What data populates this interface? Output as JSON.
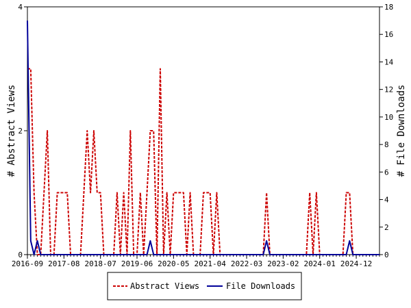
{
  "chart_data": {
    "type": "line",
    "ylabel_left": "# Abstract Views",
    "ylabel_right": "# File Downloads",
    "ylim_left": [
      0,
      4
    ],
    "ylim_right": [
      0,
      18
    ],
    "yticks_left": [
      "0",
      "2",
      "4"
    ],
    "yticks_right": [
      "0",
      "2",
      "4",
      "6",
      "8",
      "10",
      "12",
      "14",
      "16",
      "18"
    ],
    "x_range": [
      "2016-09",
      "2025-07"
    ],
    "xticks": [
      "2016-09",
      "2017-08",
      "2018-07",
      "2019-06",
      "2020-05",
      "2021-04",
      "2022-03",
      "2023-02",
      "2024-01",
      "2024-12"
    ],
    "grid": false,
    "legend_position": "bottom",
    "series": [
      {
        "name": "Abstract Views",
        "axis": "left",
        "color": "#cc0000",
        "dash": "dashed",
        "points": [
          [
            "2016-09",
            3
          ],
          [
            "2016-10",
            3
          ],
          [
            "2016-11",
            1
          ],
          [
            "2016-12",
            0
          ],
          [
            "2017-01",
            0
          ],
          [
            "2017-02",
            1
          ],
          [
            "2017-03",
            2
          ],
          [
            "2017-04",
            0
          ],
          [
            "2017-05",
            0
          ],
          [
            "2017-06",
            1
          ],
          [
            "2017-07",
            1
          ],
          [
            "2017-08",
            1
          ],
          [
            "2017-09",
            1
          ],
          [
            "2017-10",
            0
          ],
          [
            "2017-11",
            0
          ],
          [
            "2017-12",
            0
          ],
          [
            "2018-01",
            0
          ],
          [
            "2018-02",
            1
          ],
          [
            "2018-03",
            2
          ],
          [
            "2018-04",
            1
          ],
          [
            "2018-05",
            2
          ],
          [
            "2018-06",
            1
          ],
          [
            "2018-07",
            1
          ],
          [
            "2018-08",
            0
          ],
          [
            "2018-09",
            0
          ],
          [
            "2018-10",
            0
          ],
          [
            "2018-11",
            0
          ],
          [
            "2018-12",
            1
          ],
          [
            "2019-01",
            0
          ],
          [
            "2019-02",
            1
          ],
          [
            "2019-03",
            0
          ],
          [
            "2019-04",
            2
          ],
          [
            "2019-05",
            0
          ],
          [
            "2019-06",
            0
          ],
          [
            "2019-07",
            1
          ],
          [
            "2019-08",
            0
          ],
          [
            "2019-09",
            1
          ],
          [
            "2019-10",
            2
          ],
          [
            "2019-11",
            2
          ],
          [
            "2019-12",
            0
          ],
          [
            "2020-01",
            3
          ],
          [
            "2020-02",
            0
          ],
          [
            "2020-03",
            1
          ],
          [
            "2020-04",
            0
          ],
          [
            "2020-05",
            1
          ],
          [
            "2020-06",
            1
          ],
          [
            "2020-07",
            1
          ],
          [
            "2020-08",
            1
          ],
          [
            "2020-09",
            0
          ],
          [
            "2020-10",
            1
          ],
          [
            "2020-11",
            0
          ],
          [
            "2020-12",
            0
          ],
          [
            "2021-01",
            0
          ],
          [
            "2021-02",
            1
          ],
          [
            "2021-03",
            1
          ],
          [
            "2021-04",
            1
          ],
          [
            "2021-05",
            0
          ],
          [
            "2021-06",
            1
          ],
          [
            "2021-07",
            0
          ],
          [
            "2021-08",
            0
          ],
          [
            "2021-09",
            0
          ],
          [
            "2021-10",
            0
          ],
          [
            "2021-11",
            0
          ],
          [
            "2021-12",
            0
          ],
          [
            "2022-01",
            0
          ],
          [
            "2022-02",
            0
          ],
          [
            "2022-03",
            0
          ],
          [
            "2022-04",
            0
          ],
          [
            "2022-05",
            0
          ],
          [
            "2022-06",
            0
          ],
          [
            "2022-07",
            0
          ],
          [
            "2022-08",
            0
          ],
          [
            "2022-09",
            1
          ],
          [
            "2022-10",
            0
          ],
          [
            "2022-11",
            0
          ],
          [
            "2022-12",
            0
          ],
          [
            "2023-01",
            0
          ],
          [
            "2023-02",
            0
          ],
          [
            "2023-03",
            0
          ],
          [
            "2023-04",
            0
          ],
          [
            "2023-05",
            0
          ],
          [
            "2023-06",
            0
          ],
          [
            "2023-07",
            0
          ],
          [
            "2023-08",
            0
          ],
          [
            "2023-09",
            0
          ],
          [
            "2023-10",
            1
          ],
          [
            "2023-11",
            0
          ],
          [
            "2023-12",
            1
          ],
          [
            "2024-01",
            0
          ],
          [
            "2024-02",
            0
          ],
          [
            "2024-03",
            0
          ],
          [
            "2024-04",
            0
          ],
          [
            "2024-05",
            0
          ],
          [
            "2024-06",
            0
          ],
          [
            "2024-07",
            0
          ],
          [
            "2024-08",
            0
          ],
          [
            "2024-09",
            1
          ],
          [
            "2024-10",
            1
          ],
          [
            "2024-11",
            0
          ],
          [
            "2024-12",
            0
          ],
          [
            "2025-01",
            0
          ],
          [
            "2025-02",
            0
          ],
          [
            "2025-03",
            0
          ],
          [
            "2025-04",
            0
          ],
          [
            "2025-05",
            0
          ],
          [
            "2025-06",
            0
          ],
          [
            "2025-07",
            0
          ]
        ]
      },
      {
        "name": "File Downloads",
        "axis": "right",
        "color": "#000099",
        "dash": "solid",
        "points": [
          [
            "2016-09",
            17
          ],
          [
            "2016-10",
            1
          ],
          [
            "2016-11",
            0
          ],
          [
            "2016-12",
            1
          ],
          [
            "2017-01",
            0
          ],
          [
            "2017-02",
            0
          ],
          [
            "2017-03",
            0
          ],
          [
            "2017-04",
            0
          ],
          [
            "2017-05",
            0
          ],
          [
            "2017-06",
            0
          ],
          [
            "2017-07",
            0
          ],
          [
            "2017-08",
            0
          ],
          [
            "2017-09",
            0
          ],
          [
            "2017-10",
            0
          ],
          [
            "2017-11",
            0
          ],
          [
            "2017-12",
            0
          ],
          [
            "2018-01",
            0
          ],
          [
            "2018-02",
            0
          ],
          [
            "2018-03",
            0
          ],
          [
            "2018-04",
            0
          ],
          [
            "2018-05",
            0
          ],
          [
            "2018-06",
            0
          ],
          [
            "2018-07",
            0
          ],
          [
            "2018-08",
            0
          ],
          [
            "2018-09",
            0
          ],
          [
            "2018-10",
            0
          ],
          [
            "2018-11",
            0
          ],
          [
            "2018-12",
            0
          ],
          [
            "2019-01",
            0
          ],
          [
            "2019-02",
            0
          ],
          [
            "2019-03",
            0
          ],
          [
            "2019-04",
            0
          ],
          [
            "2019-05",
            0
          ],
          [
            "2019-06",
            0
          ],
          [
            "2019-07",
            0
          ],
          [
            "2019-08",
            0
          ],
          [
            "2019-09",
            0
          ],
          [
            "2019-10",
            1
          ],
          [
            "2019-11",
            0
          ],
          [
            "2019-12",
            0
          ],
          [
            "2020-01",
            0
          ],
          [
            "2020-02",
            0
          ],
          [
            "2020-03",
            0
          ],
          [
            "2020-04",
            0
          ],
          [
            "2020-05",
            0
          ],
          [
            "2020-06",
            0
          ],
          [
            "2020-07",
            0
          ],
          [
            "2020-08",
            0
          ],
          [
            "2020-09",
            0
          ],
          [
            "2020-10",
            0
          ],
          [
            "2020-11",
            0
          ],
          [
            "2020-12",
            0
          ],
          [
            "2021-01",
            0
          ],
          [
            "2021-02",
            0
          ],
          [
            "2021-03",
            0
          ],
          [
            "2021-04",
            0
          ],
          [
            "2021-05",
            0
          ],
          [
            "2021-06",
            0
          ],
          [
            "2021-07",
            0
          ],
          [
            "2021-08",
            0
          ],
          [
            "2021-09",
            0
          ],
          [
            "2021-10",
            0
          ],
          [
            "2021-11",
            0
          ],
          [
            "2021-12",
            0
          ],
          [
            "2022-01",
            0
          ],
          [
            "2022-02",
            0
          ],
          [
            "2022-03",
            0
          ],
          [
            "2022-04",
            0
          ],
          [
            "2022-05",
            0
          ],
          [
            "2022-06",
            0
          ],
          [
            "2022-07",
            0
          ],
          [
            "2022-08",
            0
          ],
          [
            "2022-09",
            1
          ],
          [
            "2022-10",
            0
          ],
          [
            "2022-11",
            0
          ],
          [
            "2022-12",
            0
          ],
          [
            "2023-01",
            0
          ],
          [
            "2023-02",
            0
          ],
          [
            "2023-03",
            0
          ],
          [
            "2023-04",
            0
          ],
          [
            "2023-05",
            0
          ],
          [
            "2023-06",
            0
          ],
          [
            "2023-07",
            0
          ],
          [
            "2023-08",
            0
          ],
          [
            "2023-09",
            0
          ],
          [
            "2023-10",
            0
          ],
          [
            "2023-11",
            0
          ],
          [
            "2023-12",
            0
          ],
          [
            "2024-01",
            0
          ],
          [
            "2024-02",
            0
          ],
          [
            "2024-03",
            0
          ],
          [
            "2024-04",
            0
          ],
          [
            "2024-05",
            0
          ],
          [
            "2024-06",
            0
          ],
          [
            "2024-07",
            0
          ],
          [
            "2024-08",
            0
          ],
          [
            "2024-09",
            0
          ],
          [
            "2024-10",
            1
          ],
          [
            "2024-11",
            0
          ],
          [
            "2024-12",
            0
          ],
          [
            "2025-01",
            0
          ],
          [
            "2025-02",
            0
          ],
          [
            "2025-03",
            0
          ],
          [
            "2025-04",
            0
          ],
          [
            "2025-05",
            0
          ],
          [
            "2025-06",
            0
          ],
          [
            "2025-07",
            0
          ]
        ]
      }
    ]
  }
}
